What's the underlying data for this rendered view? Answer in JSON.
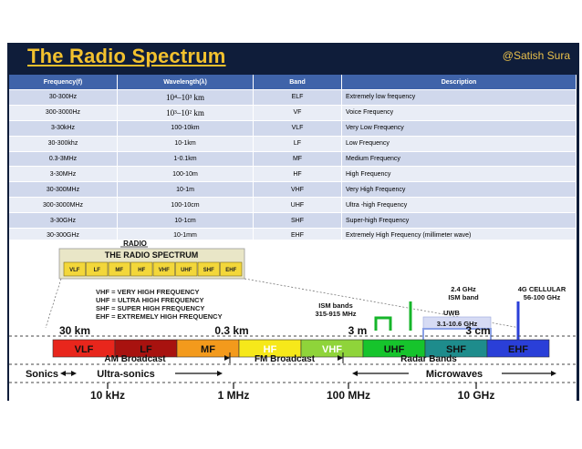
{
  "title": "The Radio Spectrum",
  "author": "@Satish Sura",
  "table": {
    "headers": [
      "Frequency(f)",
      "Wavelength(λ)",
      "Band",
      "Description"
    ],
    "rows": [
      {
        "freq": "30-300Hz",
        "wave": "10⁴–10³ km",
        "band": "ELF",
        "desc": "Extremely low frequency"
      },
      {
        "freq": "300-3000Hz",
        "wave": "10³–10² km",
        "band": "VF",
        "desc": "Voice Frequency"
      },
      {
        "freq": "3-30kHz",
        "wave": "100-10km",
        "band": "VLF",
        "desc": "Very Low Frequency"
      },
      {
        "freq": "30-300khz",
        "wave": "10-1km",
        "band": "LF",
        "desc": "Low Frequency"
      },
      {
        "freq": "0.3-3MHz",
        "wave": "1-0.1km",
        "band": "MF",
        "desc": "Medium Frequency"
      },
      {
        "freq": "3-30MHz",
        "wave": "100-10m",
        "band": "HF",
        "desc": "High Frequency"
      },
      {
        "freq": "30-300MHz",
        "wave": "10-1m",
        "band": "VHF",
        "desc": "Very High Frequency"
      },
      {
        "freq": "300-3000MHz",
        "wave": "100-10cm",
        "band": "UHF",
        "desc": "Ultra -high Frequency"
      },
      {
        "freq": "3-30GHz",
        "wave": "10-1cm",
        "band": "SHF",
        "desc": "Super-high Frequency"
      },
      {
        "freq": "30-300GHz",
        "wave": "10-1mm",
        "band": "EHF",
        "desc": "Extremely High Frequency (millimeter wave)"
      }
    ]
  },
  "diagram": {
    "radio_label": "RADIO",
    "box_title": "THE RADIO SPECTRUM",
    "mini_bands": [
      "VLF",
      "LF",
      "MF",
      "HF",
      "VHF",
      "UHF",
      "SHF",
      "EHF"
    ],
    "definitions": [
      "VHF = VERY HIGH FREQUENCY",
      "UHF = ULTRA HIGH FREQUENCY",
      "SHF = SUPER HIGH FREQUENCY",
      "EHF = EXTREMELY HIGH FREQUENCY"
    ],
    "wavelengths": [
      "30 km",
      "0.3 km",
      "3 m",
      "3 cm"
    ],
    "bands": [
      {
        "label": "VLF",
        "color": "#e8261c"
      },
      {
        "label": "LF",
        "color": "#a8120f"
      },
      {
        "label": "MF",
        "color": "#f39a1c"
      },
      {
        "label": "HF",
        "color": "#f6e81a"
      },
      {
        "label": "VHF",
        "color": "#8fd43a"
      },
      {
        "label": "UHF",
        "color": "#16c42c"
      },
      {
        "label": "SHF",
        "color": "#1e8c8c"
      },
      {
        "label": "EHF",
        "color": "#2a3fd8"
      }
    ],
    "callouts": {
      "ism1": "ISM bands",
      "ism1_freq": "315-915 MHz",
      "ghz24": "2.4 GHz",
      "ism2": "ISM band",
      "uwb": "UWB",
      "uwb_freq": "3.1-10.6 GHz",
      "cellular": "4G CELLULAR",
      "cellular_freq": "56-100 GHz"
    },
    "broadcasts": [
      "AM Broadcast",
      "FM Broadcast",
      "Radar Bands"
    ],
    "categories": [
      "Sonics",
      "Ultra-sonics",
      "Microwaves"
    ],
    "frequencies": [
      "10 kHz",
      "1 MHz",
      "100 MHz",
      "10 GHz"
    ]
  }
}
